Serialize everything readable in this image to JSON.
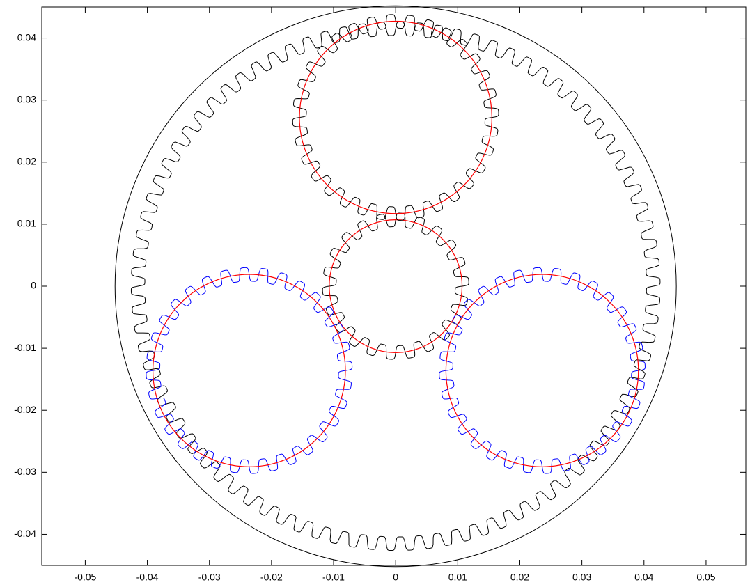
{
  "chart_data": {
    "type": "gears",
    "xlim": [
      -0.057,
      0.0564
    ],
    "ylim": [
      -0.045,
      0.045
    ],
    "xticks": [
      -0.05,
      -0.04,
      -0.03,
      -0.02,
      -0.01,
      0,
      0.01,
      0.02,
      0.03,
      0.04,
      0.05
    ],
    "yticks": [
      -0.04,
      -0.03,
      -0.02,
      -0.01,
      0,
      0.01,
      0.02,
      0.03,
      0.04
    ],
    "housing": {
      "cx": 0,
      "cy": 0,
      "r": 0.0452,
      "color": "#000000"
    },
    "pitch_color": "#ff0000",
    "tooth_height": 0.0011,
    "ring": {
      "cx": 0,
      "cy": 0,
      "r": 0.0415,
      "teeth": 86,
      "color": "#000000"
    },
    "gears": [
      {
        "cx": 0,
        "cy": 0,
        "r": 0.0107,
        "teeth": 22,
        "color": "#000000"
      },
      {
        "cx": 0,
        "cy": 0.0272,
        "r": 0.0155,
        "teeth": 32,
        "color": "#000000"
      },
      {
        "cx": -0.0236,
        "cy": -0.0136,
        "r": 0.0155,
        "teeth": 32,
        "color": "#0000ff"
      },
      {
        "cx": 0.0236,
        "cy": -0.0136,
        "r": 0.0155,
        "teeth": 32,
        "color": "#0000ff"
      }
    ]
  }
}
